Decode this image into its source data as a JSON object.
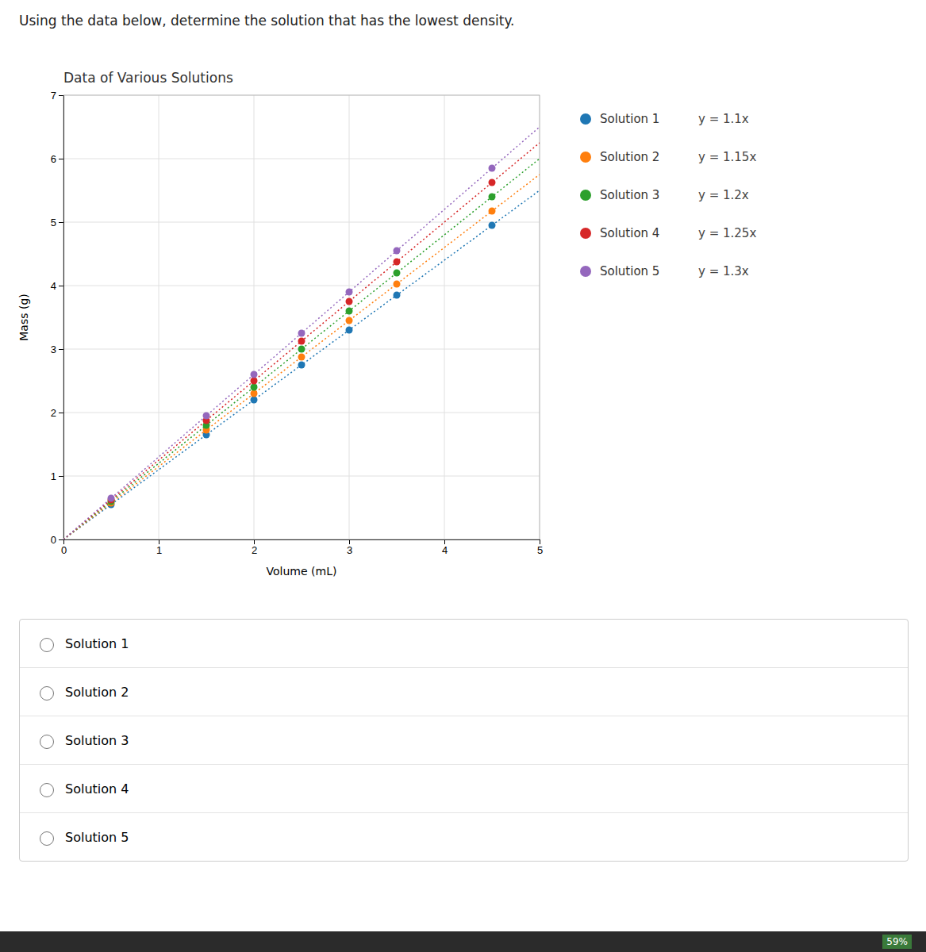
{
  "question_text": "Using the data below, determine the solution that has the lowest density.",
  "radio_options": [
    "Solution 1",
    "Solution 2",
    "Solution 3",
    "Solution 4",
    "Solution 5"
  ],
  "taskbar_label": "59%",
  "chart_data": {
    "type": "scatter",
    "title": "Data of Various Solutions",
    "x_label": "Volume (mL)",
    "y_label": "Mass (g)",
    "x": [
      0.5,
      1.5,
      2.0,
      2.5,
      3.0,
      3.5,
      4.5
    ],
    "trend_x": [
      0,
      5
    ],
    "series": [
      {
        "name": "Solution 1",
        "equation": "y = 1.1x",
        "marker": "circle",
        "line_style": "dotted",
        "values": [
          0.55,
          1.65,
          2.2,
          2.75,
          3.3,
          3.85,
          4.95
        ],
        "trend_values": [
          0,
          5.5
        ]
      },
      {
        "name": "Solution 2",
        "equation": "y = 1.15x",
        "marker": "circle",
        "line_style": "dotted",
        "values": [
          0.575,
          1.725,
          2.3,
          2.875,
          3.45,
          4.025,
          5.175
        ],
        "trend_values": [
          0,
          5.75
        ]
      },
      {
        "name": "Solution 3",
        "equation": "y = 1.2x",
        "marker": "circle",
        "line_style": "dotted",
        "values": [
          0.6,
          1.8,
          2.4,
          3.0,
          3.6,
          4.2,
          5.4
        ],
        "trend_values": [
          0,
          6
        ]
      },
      {
        "name": "Solution 4",
        "equation": "y = 1.25x",
        "marker": "circle",
        "line_style": "dotted",
        "values": [
          0.625,
          1.875,
          2.5,
          3.125,
          3.75,
          4.375,
          5.625
        ],
        "trend_values": [
          0,
          6.25
        ]
      },
      {
        "name": "Solution 5",
        "equation": "y = 1.3x",
        "marker": "circle",
        "line_style": "dotted",
        "values": [
          0.65,
          1.95,
          2.6,
          3.25,
          3.9,
          4.55,
          5.85
        ],
        "trend_values": [
          0,
          6.5
        ]
      }
    ],
    "xlim": [
      0,
      5
    ],
    "ylim": [
      0,
      7
    ],
    "xticks": [
      0,
      1,
      2,
      3,
      4,
      5
    ],
    "yticks": [
      0,
      1,
      2,
      3,
      4,
      5,
      6,
      7
    ],
    "grid": true,
    "legend": "right"
  }
}
